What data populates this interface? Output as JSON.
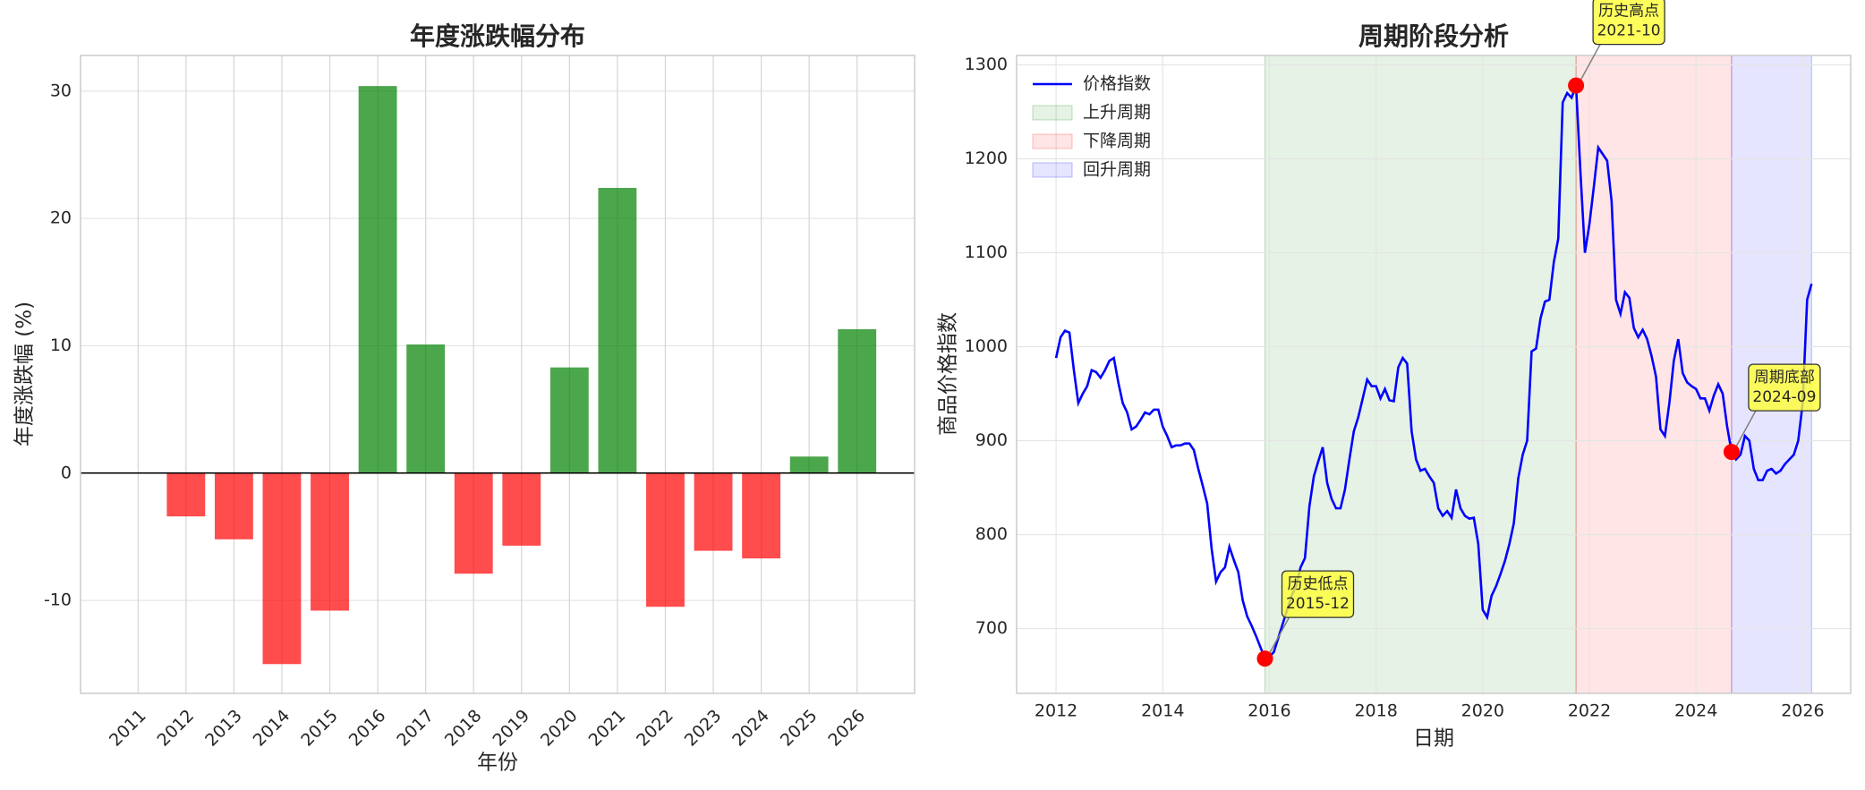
{
  "chart_data": [
    {
      "type": "bar",
      "title": "年度涨跌幅分布",
      "xlabel": "年份",
      "ylabel": "年度涨跌幅 (%)",
      "categories": [
        "2011",
        "2012",
        "2013",
        "2014",
        "2015",
        "2016",
        "2017",
        "2018",
        "2019",
        "2020",
        "2021",
        "2022",
        "2023",
        "2024",
        "2025",
        "2026"
      ],
      "values": [
        null,
        -3.4,
        -5.2,
        -15,
        -10.8,
        30.4,
        10.1,
        -7.9,
        -5.7,
        8.3,
        22.4,
        -10.5,
        -6.1,
        -6.7,
        1.3,
        11.3
      ],
      "positive_color": "#008000",
      "negative_color": "#ff0000",
      "alpha": 0.7,
      "ylim": [
        -17.3,
        32.8
      ],
      "yticks": [
        -10,
        0,
        10,
        20,
        30
      ],
      "grid": true
    },
    {
      "type": "line",
      "title": "周期阶段分析",
      "xlabel": "日期",
      "ylabel": "商品价格指数",
      "x": [
        "2012-01",
        "2012-02",
        "2012-03",
        "2012-04",
        "2012-05",
        "2012-06",
        "2012-07",
        "2012-08",
        "2012-09",
        "2012-10",
        "2012-11",
        "2012-12",
        "2013-01",
        "2013-02",
        "2013-03",
        "2013-04",
        "2013-05",
        "2013-06",
        "2013-07",
        "2013-08",
        "2013-09",
        "2013-10",
        "2013-11",
        "2013-12",
        "2014-01",
        "2014-02",
        "2014-03",
        "2014-04",
        "2014-05",
        "2014-06",
        "2014-07",
        "2014-08",
        "2014-09",
        "2014-10",
        "2014-11",
        "2014-12",
        "2015-01",
        "2015-02",
        "2015-03",
        "2015-04",
        "2015-05",
        "2015-06",
        "2015-07",
        "2015-08",
        "2015-09",
        "2015-10",
        "2015-11",
        "2015-12",
        "2016-01",
        "2016-02",
        "2016-03",
        "2016-04",
        "2016-05",
        "2016-06",
        "2016-07",
        "2016-08",
        "2016-09",
        "2016-10",
        "2016-11",
        "2016-12",
        "2017-01",
        "2017-02",
        "2017-03",
        "2017-04",
        "2017-05",
        "2017-06",
        "2017-07",
        "2017-08",
        "2017-09",
        "2017-10",
        "2017-11",
        "2017-12",
        "2018-01",
        "2018-02",
        "2018-03",
        "2018-04",
        "2018-05",
        "2018-06",
        "2018-07",
        "2018-08",
        "2018-09",
        "2018-10",
        "2018-11",
        "2018-12",
        "2019-01",
        "2019-02",
        "2019-03",
        "2019-04",
        "2019-05",
        "2019-06",
        "2019-07",
        "2019-08",
        "2019-09",
        "2019-10",
        "2019-11",
        "2019-12",
        "2020-01",
        "2020-02",
        "2020-03",
        "2020-04",
        "2020-05",
        "2020-06",
        "2020-07",
        "2020-08",
        "2020-09",
        "2020-10",
        "2020-11",
        "2020-12",
        "2021-01",
        "2021-02",
        "2021-03",
        "2021-04",
        "2021-05",
        "2021-06",
        "2021-07",
        "2021-08",
        "2021-09",
        "2021-10",
        "2021-11",
        "2021-12",
        "2022-01",
        "2022-02",
        "2022-03",
        "2022-04",
        "2022-05",
        "2022-06",
        "2022-07",
        "2022-08",
        "2022-09",
        "2022-10",
        "2022-11",
        "2022-12",
        "2023-01",
        "2023-02",
        "2023-03",
        "2023-04",
        "2023-05",
        "2023-06",
        "2023-07",
        "2023-08",
        "2023-09",
        "2023-10",
        "2023-11",
        "2023-12",
        "2024-01",
        "2024-02",
        "2024-03",
        "2024-04",
        "2024-05",
        "2024-06",
        "2024-07",
        "2024-08",
        "2024-09",
        "2024-10",
        "2024-11",
        "2024-12",
        "2025-01",
        "2025-02",
        "2025-03",
        "2025-04",
        "2025-05",
        "2025-06",
        "2025-07",
        "2025-08",
        "2025-09",
        "2025-10",
        "2025-11",
        "2025-12",
        "2026-01",
        "2026-02",
        "2026-03"
      ],
      "series": [
        {
          "name": "价格指数",
          "color": "#0000ff",
          "values": [
            988,
            1010,
            1017,
            1015,
            975,
            940,
            950,
            958,
            975,
            973,
            967,
            975,
            985,
            988,
            962,
            940,
            930,
            912,
            915,
            922,
            930,
            928,
            933,
            933,
            915,
            905,
            893,
            895,
            895,
            897,
            897,
            890,
            870,
            852,
            833,
            785,
            750,
            760,
            765,
            787,
            773,
            760,
            730,
            713,
            703,
            692,
            680,
            668,
            670,
            675,
            690,
            705,
            720,
            735,
            745,
            765,
            775,
            830,
            862,
            878,
            893,
            855,
            838,
            828,
            828,
            848,
            880,
            910,
            925,
            945,
            965,
            958,
            958,
            945,
            955,
            943,
            942,
            978,
            988,
            982,
            910,
            880,
            868,
            870,
            862,
            855,
            828,
            820,
            825,
            818,
            848,
            828,
            820,
            817,
            818,
            790,
            720,
            712,
            735,
            745,
            758,
            772,
            790,
            812,
            860,
            885,
            900,
            995,
            998,
            1030,
            1048,
            1050,
            1090,
            1115,
            1260,
            1270,
            1265,
            1278,
            1185,
            1100,
            1130,
            1170,
            1212,
            1205,
            1198,
            1155,
            1050,
            1035,
            1058,
            1052,
            1020,
            1010,
            1018,
            1008,
            990,
            968,
            912,
            905,
            940,
            985,
            1008,
            972,
            962,
            958,
            955,
            945,
            945,
            932,
            948,
            960,
            950,
            915,
            888,
            880,
            885,
            905,
            900,
            870,
            858,
            858,
            868,
            870,
            865,
            868,
            875,
            880,
            885,
            900,
            940,
            1050,
            1067
          ]
        }
      ],
      "spans": [
        {
          "name": "上升周期",
          "start": "2015-12",
          "end": "2021-10",
          "color": "#008000",
          "alpha": 0.1
        },
        {
          "name": "下降周期",
          "start": "2021-10",
          "end": "2024-09",
          "color": "#ff0000",
          "alpha": 0.1
        },
        {
          "name": "回升周期",
          "start": "2024-09",
          "end": "2026-03",
          "color": "#0000ff",
          "alpha": 0.1
        }
      ],
      "annotations": [
        {
          "text": "历史低点",
          "x": "2015-12",
          "y": 668
        },
        {
          "text": "历史高点",
          "x": "2021-10",
          "y": 1278
        },
        {
          "text": "周期底部",
          "x": "2024-09",
          "y": 888
        }
      ],
      "marker_color": "#ff0000",
      "xlim": [
        2011.26,
        2026.9
      ],
      "xticks": [
        2012,
        2014,
        2016,
        2018,
        2020,
        2022,
        2024,
        2026
      ],
      "ylim": [
        631,
        1310
      ],
      "yticks": [
        700,
        800,
        900,
        1000,
        1100,
        1200,
        1300
      ],
      "grid": true,
      "legend": "upper left"
    }
  ]
}
